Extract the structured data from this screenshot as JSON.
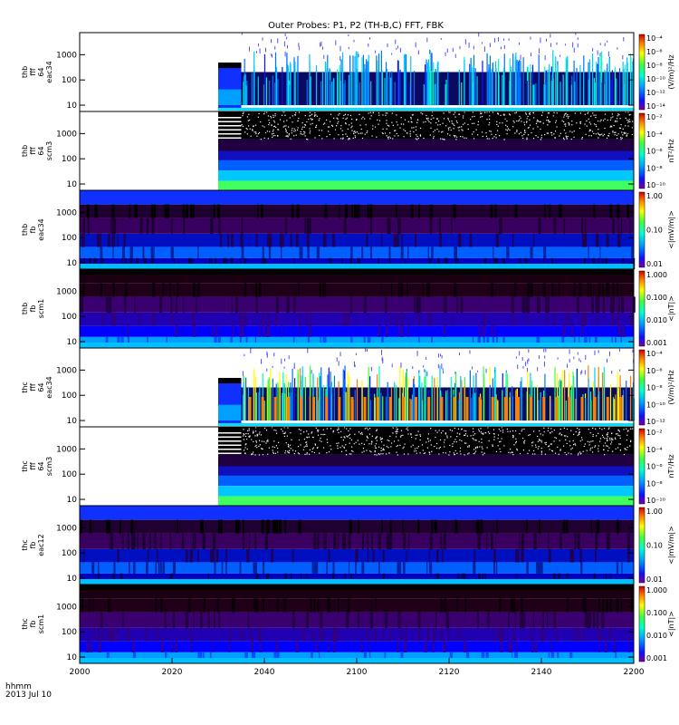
{
  "title": "Outer Probes: P1, P2 (TH-B,C) FFT, FBK",
  "x_label": {
    "line1": "hhmm",
    "line2": "2013 Jul 10"
  },
  "chart_data": {
    "type": "heatmap",
    "title": "Outer Probes: P1, P2 (TH-B,C) FFT, FBK",
    "x_ticks": [
      "2000",
      "2020",
      "2040",
      "2100",
      "2120",
      "2140",
      "2200"
    ],
    "x_range": [
      "2000",
      "2200"
    ],
    "panels": [
      {
        "id": "thb-fft-eac34",
        "kind": "fft",
        "data_start": "2030",
        "burst_start": "2035",
        "label": [
          "thb",
          "fff",
          "64",
          "eac34"
        ],
        "yticks": [
          "1000",
          "100",
          "10"
        ],
        "cb_label": "(V/m)²/Hz",
        "cb_ticks": [
          "10⁻⁴",
          "10⁻⁶",
          "10⁻⁸",
          "10⁻¹⁰",
          "10⁻¹²",
          "10⁻¹⁴"
        ]
      },
      {
        "id": "thb-fft-scm3",
        "kind": "fft-scm",
        "data_start": "2030",
        "burst_start": "2035",
        "label": [
          "thb",
          "fff",
          "64",
          "scm3"
        ],
        "yticks": [
          "1000",
          "100",
          "10"
        ],
        "cb_label": "nT²/Hz",
        "cb_ticks": [
          "10⁻²",
          "10⁻⁴",
          "10⁻⁶",
          "10⁻⁸",
          "10⁻¹⁰"
        ]
      },
      {
        "id": "thb-fbk-eac34",
        "kind": "fbk-e",
        "data_start": "2000",
        "label": [
          "thb",
          "fb",
          "eac34"
        ],
        "yticks": [
          "1000",
          "100",
          "10"
        ],
        "cb_label": "<|mV/m|>",
        "cb_ticks": [
          "1.00",
          "0.10",
          "0.01"
        ]
      },
      {
        "id": "thb-fbk-scm1",
        "kind": "fbk-b",
        "data_start": "2000",
        "label": [
          "thb",
          "fb",
          "scm1"
        ],
        "yticks": [
          "1000",
          "100",
          "10"
        ],
        "cb_label": "<|nT|>",
        "cb_ticks": [
          "1.000",
          "0.100",
          "0.010",
          "0.001"
        ]
      },
      {
        "id": "thc-fft-eac34",
        "kind": "fft-c",
        "data_start": "2030",
        "burst_start": "2035",
        "label": [
          "thc",
          "fff",
          "64",
          "eac34"
        ],
        "yticks": [
          "1000",
          "100",
          "10"
        ],
        "cb_label": "(V/m)²/Hz",
        "cb_ticks": [
          "10⁻⁴",
          "10⁻⁶",
          "10⁻⁸",
          "10⁻¹⁰",
          "10⁻¹²"
        ]
      },
      {
        "id": "thc-fft-scm3",
        "kind": "fft-scm",
        "data_start": "2030",
        "burst_start": "2035",
        "label": [
          "thc",
          "fff",
          "64",
          "scm3"
        ],
        "yticks": [
          "1000",
          "100",
          "10"
        ],
        "cb_label": "nT²/Hz",
        "cb_ticks": [
          "10⁻²",
          "10⁻⁴",
          "10⁻⁶",
          "10⁻⁸",
          "10⁻¹⁰"
        ]
      },
      {
        "id": "thc-fbk-eac12",
        "kind": "fbk-e",
        "data_start": "2000",
        "label": [
          "thc",
          "fb",
          "eac12"
        ],
        "yticks": [
          "1000",
          "100",
          "10"
        ],
        "cb_label": "<|mV/m|>",
        "cb_ticks": [
          "1.00",
          "0.10",
          "0.01"
        ]
      },
      {
        "id": "thc-fbk-scm1",
        "kind": "fbk-b",
        "data_start": "2000",
        "label": [
          "thc",
          "fb",
          "scm1"
        ],
        "yticks": [
          "1000",
          "100",
          "10"
        ],
        "cb_label": "<|nT|>",
        "cb_ticks": [
          "1.000",
          "0.100",
          "0.010",
          "0.001"
        ]
      }
    ]
  }
}
